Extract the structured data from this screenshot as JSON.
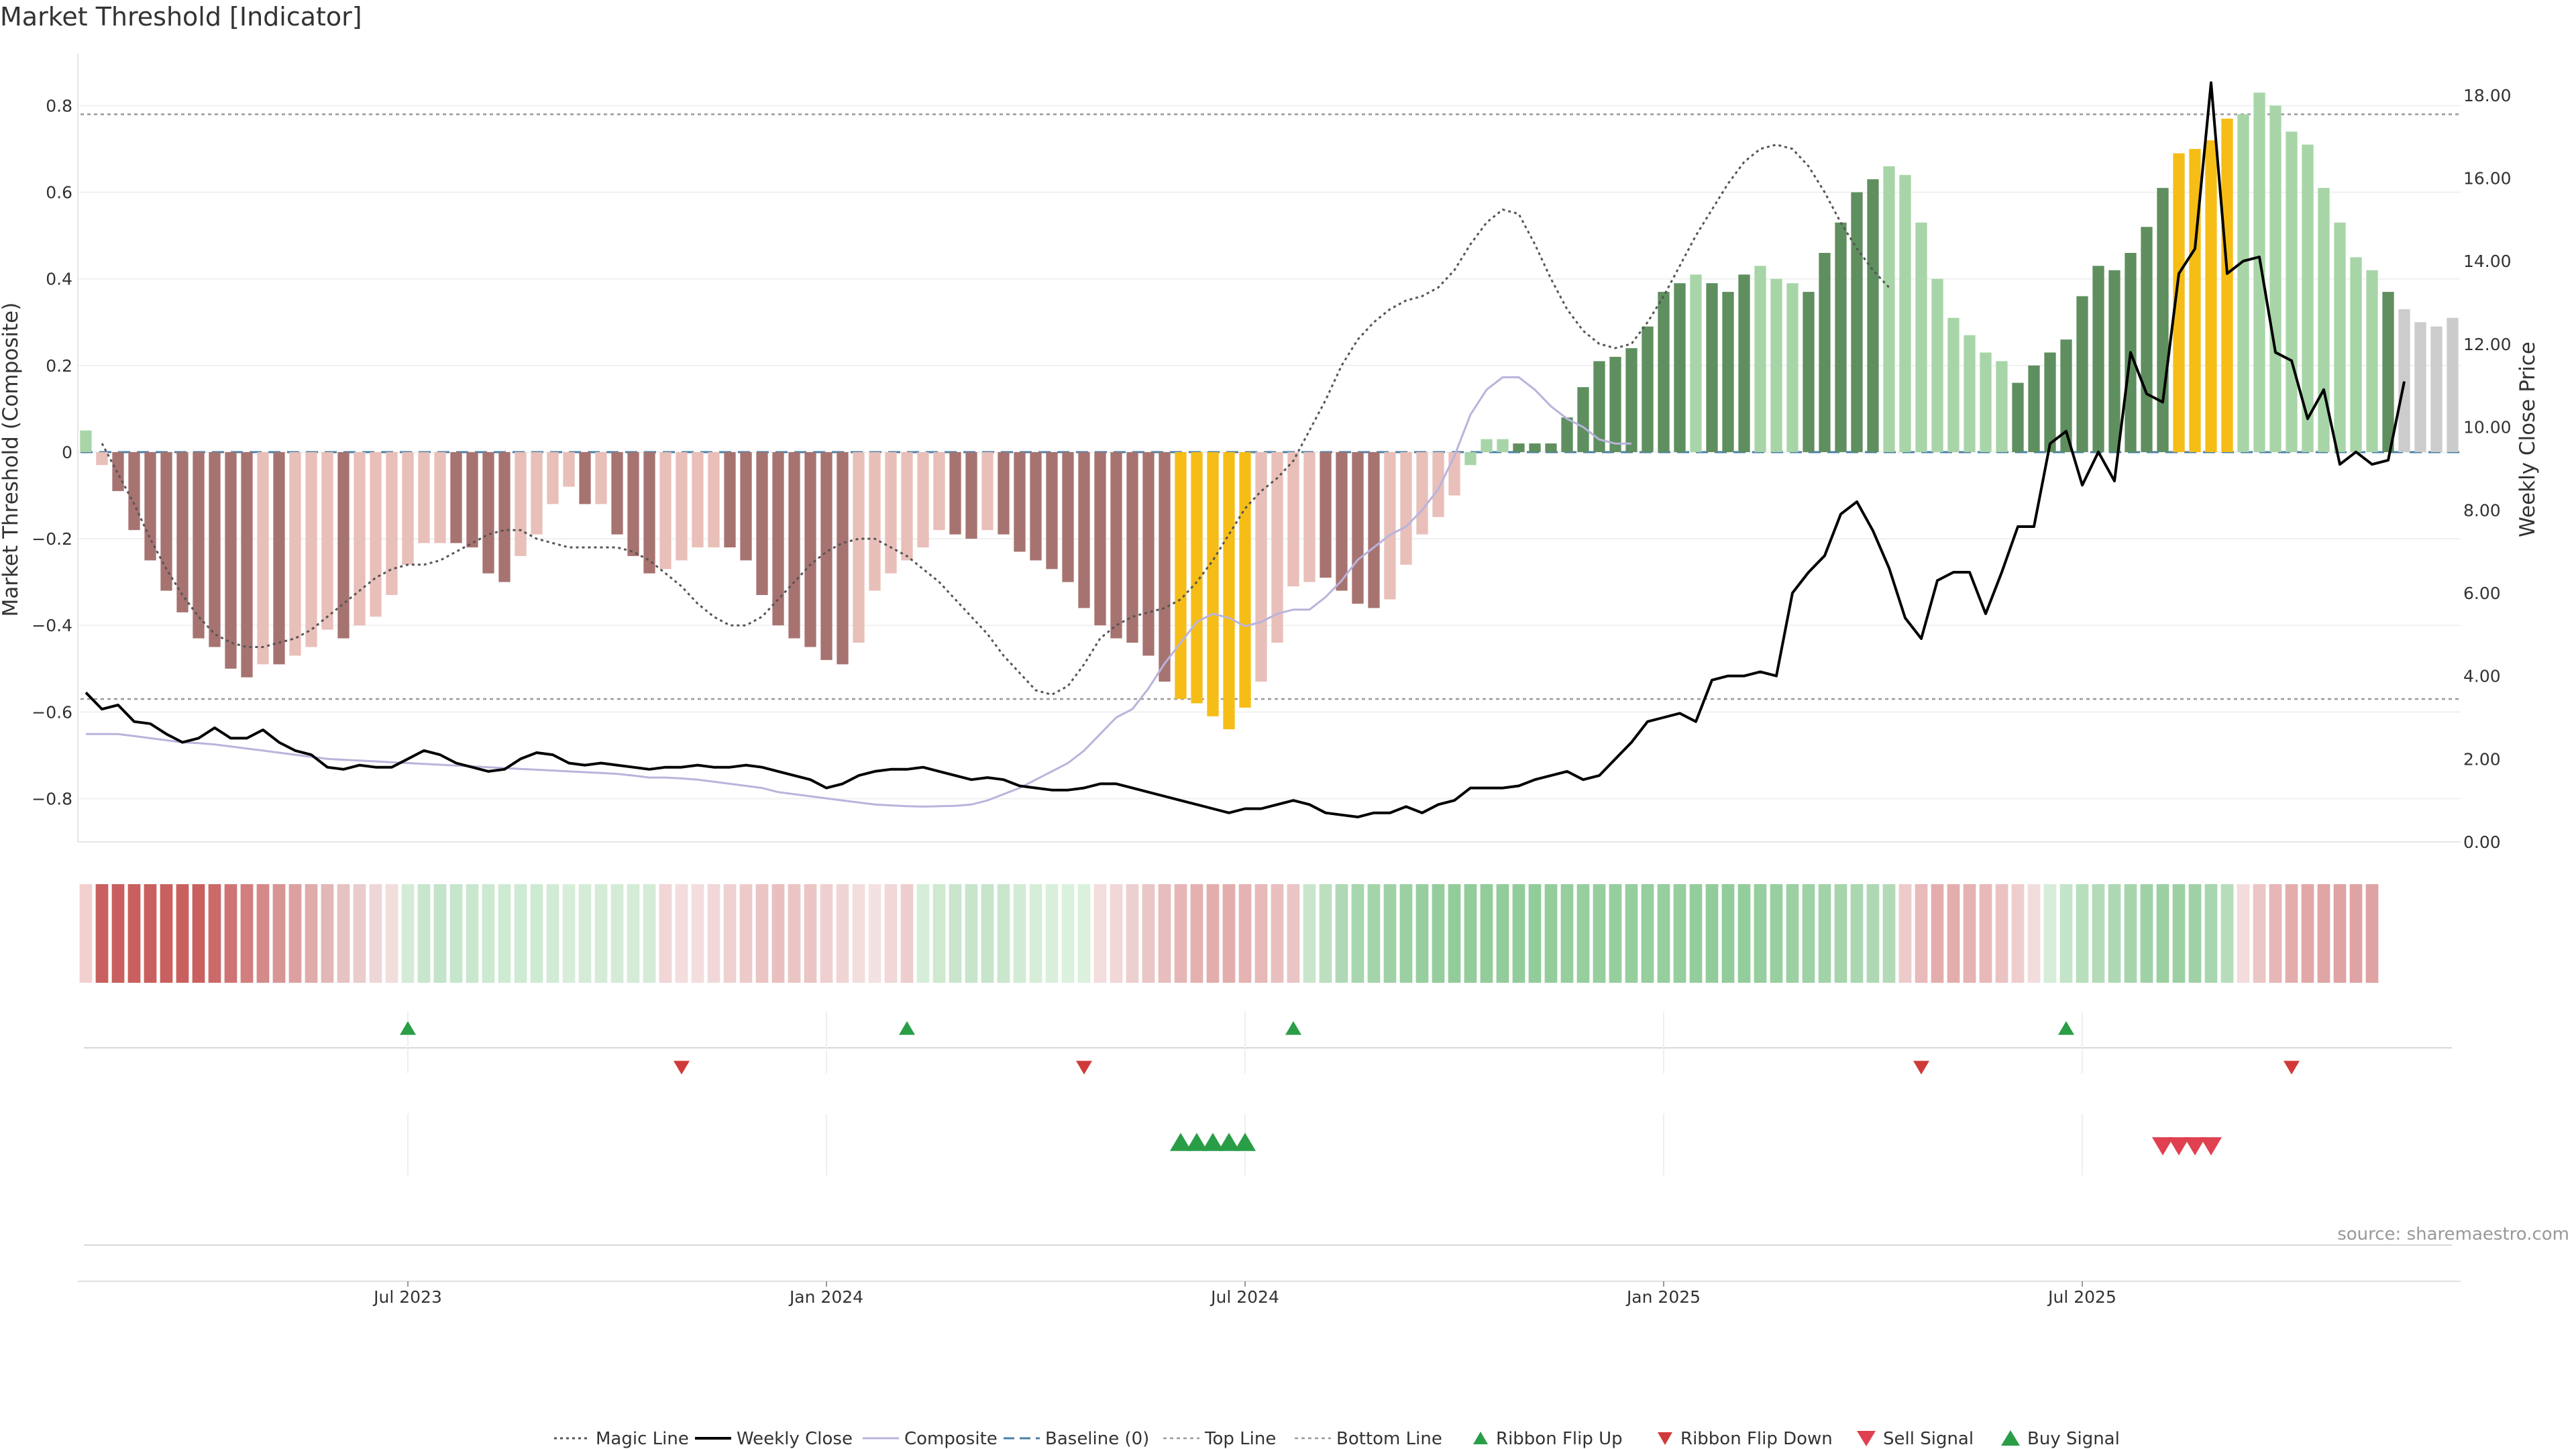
{
  "chart_data": {
    "type": "bar",
    "title": "Market Threshold [Indicator]",
    "ylabel_left": "Market Threshold (Composite)",
    "ylabel_right": "Weekly Close Price",
    "source": "source: sharemaestro.com",
    "ylim_left": [
      -0.9,
      0.92
    ],
    "ylim_right": [
      0,
      19
    ],
    "left_ticks": [
      {
        "value": 0.8,
        "label": "0.8"
      },
      {
        "value": 0.6,
        "label": "0.6"
      },
      {
        "value": 0.4,
        "label": "0.4"
      },
      {
        "value": 0.2,
        "label": "0.2"
      },
      {
        "value": 0,
        "label": "0"
      },
      {
        "value": -0.2,
        "label": "−0.2"
      },
      {
        "value": -0.4,
        "label": "−0.4"
      },
      {
        "value": -0.6,
        "label": "−0.6"
      },
      {
        "value": -0.8,
        "label": "−0.8"
      }
    ],
    "right_ticks": [
      {
        "value": 18,
        "label": "18.00"
      },
      {
        "value": 16,
        "label": "16.00"
      },
      {
        "value": 14,
        "label": "14.00"
      },
      {
        "value": 12,
        "label": "12.00"
      },
      {
        "value": 10,
        "label": "10.00"
      },
      {
        "value": 8,
        "label": "8.00"
      },
      {
        "value": 6,
        "label": "6.00"
      },
      {
        "value": 4,
        "label": "4.00"
      },
      {
        "value": 2,
        "label": "2.00"
      },
      {
        "value": 0,
        "label": "0.00"
      }
    ],
    "x_ticks": [
      {
        "week": 20,
        "label": "Jul 2023"
      },
      {
        "week": 46,
        "label": "Jan 2024"
      },
      {
        "week": 72,
        "label": "Jul 2024"
      },
      {
        "week": 98,
        "label": "Jan 2025"
      },
      {
        "week": 124,
        "label": "Jul 2025"
      }
    ],
    "top_line": 0.78,
    "bottom_line": -0.57,
    "composite": [
      0.05,
      -0.03,
      -0.09,
      -0.18,
      -0.25,
      -0.32,
      -0.37,
      -0.43,
      -0.45,
      -0.5,
      -0.52,
      -0.49,
      -0.49,
      -0.47,
      -0.45,
      -0.41,
      -0.43,
      -0.4,
      -0.38,
      -0.33,
      -0.26,
      -0.21,
      -0.21,
      -0.21,
      -0.22,
      -0.28,
      -0.3,
      -0.24,
      -0.19,
      -0.12,
      -0.08,
      -0.12,
      -0.12,
      -0.19,
      -0.24,
      -0.28,
      -0.27,
      -0.25,
      -0.22,
      -0.22,
      -0.22,
      -0.25,
      -0.33,
      -0.4,
      -0.43,
      -0.45,
      -0.48,
      -0.49,
      -0.44,
      -0.32,
      -0.28,
      -0.25,
      -0.22,
      -0.18,
      -0.19,
      -0.2,
      -0.18,
      -0.19,
      -0.23,
      -0.25,
      -0.27,
      -0.3,
      -0.36,
      -0.4,
      -0.43,
      -0.44,
      -0.47,
      -0.53,
      -0.57,
      -0.58,
      -0.61,
      -0.64,
      -0.59,
      -0.53,
      -0.44,
      -0.31,
      -0.3,
      -0.29,
      -0.32,
      -0.35,
      -0.36,
      -0.34,
      -0.26,
      -0.19,
      -0.15,
      -0.1,
      -0.03,
      0.03,
      0.03,
      0.02,
      0.02,
      0.02,
      0.08,
      0.15,
      0.21,
      0.22,
      0.24,
      0.29,
      0.37,
      0.39,
      0.41,
      0.39,
      0.37,
      0.41,
      0.43,
      0.4,
      0.39,
      0.37,
      0.46,
      0.53,
      0.6,
      0.63,
      0.66,
      0.64,
      0.53,
      0.4,
      0.31,
      0.27,
      0.23,
      0.21,
      0.16,
      0.2,
      0.23,
      0.26,
      0.36,
      0.43,
      0.42,
      0.46,
      0.52,
      0.61,
      0.69,
      0.7,
      0.72,
      0.77,
      0.78,
      0.83,
      0.8,
      0.74,
      0.71,
      0.61,
      0.53,
      0.45,
      0.42,
      0.37,
      0.33,
      0.3,
      0.29,
      0.31
    ],
    "bar_categories": [
      "pos_light",
      "neg_light",
      "neg_dark",
      "neg_dark",
      "neg_dark",
      "neg_dark",
      "neg_dark",
      "neg_dark",
      "neg_dark",
      "neg_dark",
      "neg_dark",
      "neg_light",
      "neg_dark",
      "neg_light",
      "neg_light",
      "neg_light",
      "neg_dark",
      "neg_light",
      "neg_light",
      "neg_light",
      "neg_light",
      "neg_light",
      "neg_light",
      "neg_dark",
      "neg_dark",
      "neg_dark",
      "neg_dark",
      "neg_light",
      "neg_light",
      "neg_light",
      "neg_light",
      "neg_dark",
      "neg_light",
      "neg_dark",
      "neg_dark",
      "neg_dark",
      "neg_light",
      "neg_light",
      "neg_light",
      "neg_light",
      "neg_dark",
      "neg_dark",
      "neg_dark",
      "neg_dark",
      "neg_dark",
      "neg_dark",
      "neg_dark",
      "neg_dark",
      "neg_light",
      "neg_light",
      "neg_light",
      "neg_light",
      "neg_light",
      "neg_light",
      "neg_dark",
      "neg_dark",
      "neg_light",
      "neg_dark",
      "neg_dark",
      "neg_dark",
      "neg_dark",
      "neg_dark",
      "neg_dark",
      "neg_dark",
      "neg_dark",
      "neg_dark",
      "neg_dark",
      "neg_dark",
      "gold",
      "gold",
      "gold",
      "gold",
      "gold",
      "neg_light",
      "neg_light",
      "neg_light",
      "neg_light",
      "neg_dark",
      "neg_dark",
      "neg_dark",
      "neg_dark",
      "neg_light",
      "neg_light",
      "neg_light",
      "neg_light",
      "neg_light",
      "pos_light",
      "pos_light",
      "pos_light",
      "pos_dark",
      "pos_dark",
      "pos_dark",
      "pos_dark",
      "pos_dark",
      "pos_dark",
      "pos_dark",
      "pos_dark",
      "pos_dark",
      "pos_dark",
      "pos_dark",
      "pos_light",
      "pos_dark",
      "pos_dark",
      "pos_dark",
      "pos_light",
      "pos_light",
      "pos_light",
      "pos_dark",
      "pos_dark",
      "pos_dark",
      "pos_dark",
      "pos_dark",
      "pos_light",
      "pos_light",
      "pos_light",
      "pos_light",
      "pos_light",
      "pos_light",
      "pos_light",
      "pos_light",
      "pos_dark",
      "pos_dark",
      "pos_dark",
      "pos_dark",
      "pos_dark",
      "pos_dark",
      "pos_dark",
      "pos_dark",
      "pos_dark",
      "pos_dark",
      "gold",
      "gold",
      "gold",
      "gold",
      "pos_light",
      "pos_light",
      "pos_light",
      "pos_light",
      "pos_light",
      "pos_light",
      "pos_light",
      "pos_light",
      "pos_light",
      "pos_dark"
    ],
    "weekly_close": [
      3.6,
      3.2,
      3.3,
      2.9,
      2.85,
      2.6,
      2.4,
      2.5,
      2.75,
      2.5,
      2.5,
      2.7,
      2.4,
      2.2,
      2.1,
      1.8,
      1.75,
      1.85,
      1.8,
      1.8,
      2.0,
      2.2,
      2.1,
      1.9,
      1.8,
      1.7,
      1.75,
      2.0,
      2.15,
      2.1,
      1.9,
      1.85,
      1.9,
      1.85,
      1.8,
      1.75,
      1.8,
      1.8,
      1.85,
      1.8,
      1.8,
      1.85,
      1.8,
      1.7,
      1.6,
      1.5,
      1.3,
      1.4,
      1.6,
      1.7,
      1.75,
      1.75,
      1.8,
      1.7,
      1.6,
      1.5,
      1.55,
      1.5,
      1.35,
      1.3,
      1.25,
      1.25,
      1.3,
      1.4,
      1.4,
      1.3,
      1.2,
      1.1,
      1.0,
      0.9,
      0.8,
      0.7,
      0.8,
      0.8,
      0.9,
      1.0,
      0.9,
      0.7,
      0.65,
      0.6,
      0.7,
      0.7,
      0.85,
      0.7,
      0.9,
      1.0,
      1.3,
      1.3,
      1.3,
      1.35,
      1.5,
      1.6,
      1.7,
      1.5,
      1.6,
      2.0,
      2.4,
      2.9,
      3.0,
      3.1,
      2.9,
      3.9,
      4.0,
      4.0,
      4.1,
      4.0,
      6.0,
      6.5,
      6.9,
      7.9,
      8.2,
      7.5,
      6.6,
      5.4,
      4.9,
      6.3,
      6.5,
      6.5,
      5.5,
      6.5,
      7.6,
      7.6,
      9.6,
      9.9,
      8.6,
      9.4,
      8.7,
      11.8,
      10.8,
      10.6,
      13.7,
      14.3,
      18.3,
      13.7,
      14.0,
      14.1,
      11.8,
      11.6,
      10.2,
      10.9,
      9.1,
      9.4,
      9.1,
      9.2,
      11.1
    ],
    "magic_line": [
      0.02,
      -0.05,
      -0.12,
      -0.2,
      -0.27,
      -0.33,
      -0.38,
      -0.42,
      -0.44,
      -0.45,
      -0.45,
      -0.44,
      -0.43,
      -0.41,
      -0.38,
      -0.35,
      -0.32,
      -0.29,
      -0.27,
      -0.26,
      -0.26,
      -0.25,
      -0.23,
      -0.21,
      -0.19,
      -0.18,
      -0.18,
      -0.2,
      -0.21,
      -0.22,
      -0.22,
      -0.22,
      -0.22,
      -0.23,
      -0.25,
      -0.28,
      -0.31,
      -0.35,
      -0.38,
      -0.4,
      -0.4,
      -0.38,
      -0.34,
      -0.3,
      -0.26,
      -0.23,
      -0.21,
      -0.2,
      -0.2,
      -0.22,
      -0.24,
      -0.27,
      -0.3,
      -0.34,
      -0.38,
      -0.42,
      -0.47,
      -0.51,
      -0.55,
      -0.56,
      -0.54,
      -0.49,
      -0.43,
      -0.4,
      -0.38,
      -0.37,
      -0.36,
      -0.34,
      -0.3,
      -0.25,
      -0.19,
      -0.13,
      -0.09,
      -0.06,
      -0.02,
      0.05,
      0.12,
      0.2,
      0.26,
      0.3,
      0.33,
      0.35,
      0.36,
      0.38,
      0.42,
      0.48,
      0.53,
      0.56,
      0.55,
      0.48,
      0.4,
      0.33,
      0.28,
      0.25,
      0.24,
      0.25,
      0.3,
      0.36,
      0.43,
      0.5,
      0.56,
      0.62,
      0.67,
      0.7,
      0.71,
      0.7,
      0.66,
      0.6,
      0.53,
      0.47,
      0.42,
      0.38
    ],
    "magic_line_start_week": 1,
    "ema": [
      2.6,
      2.6,
      2.6,
      2.55,
      2.5,
      2.45,
      2.4,
      2.38,
      2.35,
      2.3,
      2.25,
      2.2,
      2.15,
      2.1,
      2.05,
      2.0,
      1.98,
      1.96,
      1.94,
      1.92,
      1.9,
      1.88,
      1.86,
      1.84,
      1.82,
      1.8,
      1.78,
      1.76,
      1.74,
      1.72,
      1.7,
      1.68,
      1.66,
      1.64,
      1.6,
      1.55,
      1.55,
      1.53,
      1.5,
      1.45,
      1.4,
      1.35,
      1.3,
      1.2,
      1.15,
      1.1,
      1.05,
      1.0,
      0.95,
      0.9,
      0.88,
      0.86,
      0.85,
      0.86,
      0.87,
      0.9,
      1.0,
      1.15,
      1.3,
      1.5,
      1.7,
      1.9,
      2.2,
      2.6,
      3.0,
      3.2,
      3.7,
      4.3,
      4.8,
      5.3,
      5.5,
      5.4,
      5.2,
      5.3,
      5.5,
      5.6,
      5.6,
      5.9,
      6.3,
      6.8,
      7.1,
      7.4,
      7.6,
      8.0,
      8.5,
      9.3,
      10.3,
      10.9,
      11.2,
      11.2,
      10.9,
      10.5,
      10.2,
      10.0,
      9.7,
      9.6,
      9.6
    ],
    "ema_start_week": 0,
    "ribbon_colors": [
      "#f3d0d0",
      "#c95f5f",
      "#c95f5f",
      "#c95f5f",
      "#c95f5f",
      "#c95f5f",
      "#c95f5f",
      "#c95f5f",
      "#cc6a6a",
      "#cf7474",
      "#d27e7e",
      "#d58989",
      "#d99494",
      "#dca0a0",
      "#e0abab",
      "#e3b7b7",
      "#e7c2c2",
      "#eacccc",
      "#efd6d6",
      "#f2dddd",
      "#d4ecd7",
      "#c7e6cc",
      "#c2e4c8",
      "#c6e6cb",
      "#c9e7ce",
      "#cde9d1",
      "#cfead3",
      "#cfead3",
      "#cfead3",
      "#d2ebd6",
      "#d6eed9",
      "#d4ecd7",
      "#d4ecd7",
      "#d4ecd7",
      "#d4ecd7",
      "#d4ecd7",
      "#f0d6d6",
      "#f3dddd",
      "#f3dddd",
      "#f1d8d8",
      "#efd1d1",
      "#edcaca",
      "#ebc4c4",
      "#e9bfbf",
      "#ebc4c4",
      "#ebc4c4",
      "#efcfcf",
      "#f0d4d4",
      "#f3dddd",
      "#f4e1e1",
      "#f1d7d7",
      "#edcdcd",
      "#d6eed9",
      "#cdeacf",
      "#c9e6cd",
      "#c7e5cb",
      "#c6e5cb",
      "#cae7ce",
      "#d2ebd5",
      "#d6edd8",
      "#d9efdb",
      "#dcf0de",
      "#dcf0de",
      "#f3dddd",
      "#f1d7d7",
      "#eecfcf",
      "#ebc6c6",
      "#e8bdbd",
      "#e6b6b6",
      "#e4b0b0",
      "#e3adad",
      "#e3adad",
      "#e5b3b3",
      "#e7b9b9",
      "#e9bfbf",
      "#ebc5c5",
      "#c9e6cd",
      "#bcdfc0",
      "#afd9b5",
      "#a8d6ae",
      "#a4d4aa",
      "#9fd1a6",
      "#9ad0a2",
      "#97ce9f",
      "#95cd9d",
      "#93cc9b",
      "#92cc9a",
      "#92cc9a",
      "#92cc9a",
      "#92cc9a",
      "#92cc9a",
      "#94cd9c",
      "#96ce9e",
      "#96ce9e",
      "#96ce9e",
      "#96ce9e",
      "#96ce9e",
      "#96ce9e",
      "#96ce9e",
      "#96ce9e",
      "#94cd9c",
      "#92cc9a",
      "#92cc9a",
      "#94cd9c",
      "#96ce9e",
      "#98cf9f",
      "#9bd0a2",
      "#9ed1a5",
      "#a2d3a8",
      "#a6d5ac",
      "#aad7b0",
      "#aed8b3",
      "#b2dab6",
      "#edcbcb",
      "#e8baba",
      "#e4adad",
      "#e4adad",
      "#e6b2b2",
      "#e8b9b9",
      "#ebc2c2",
      "#efcdcd",
      "#f3dcdc",
      "#d6eed9",
      "#c3e4c8",
      "#b8dfbd",
      "#b3dbb8",
      "#aed8b3",
      "#a6d5ac",
      "#9fd1a6",
      "#9bd0a2",
      "#9bd0a2",
      "#9fd1a6",
      "#a8d6ae",
      "#b6ddbb",
      "#f3dcdc",
      "#ecc5c5",
      "#e7b6b6",
      "#e4adad",
      "#e2a8a8",
      "#e0a5a5",
      "#dfa3a3",
      "#dfa3a3",
      "#dfa3a3"
    ],
    "ribbon_flip_up_weeks": [
      20,
      51,
      75,
      123
    ],
    "ribbon_flip_down_weeks": [
      37,
      62,
      114,
      137
    ],
    "buy_signal_weeks": [
      68,
      69,
      70,
      71,
      72
    ],
    "sell_signal_weeks": [
      129,
      130,
      131,
      132
    ],
    "colors": {
      "neg_dark": "#a77370",
      "neg_light": "#e9bfb9",
      "pos_dark": "#5f8f5f",
      "pos_light": "#a8d5a8",
      "gold": "#f6bd16",
      "weekly_close": "#000000",
      "composite": "#b8b4dc",
      "magic_line": "#555555",
      "baseline": "#4a7fa7",
      "ref_line": "#999999",
      "flip_up": "#2a9d47",
      "flip_down": "#d03a3a",
      "sell": "#e04050",
      "buy": "#2a9d47"
    },
    "legend": [
      {
        "label": "Magic Line",
        "type": "dotted-line"
      },
      {
        "label": "Weekly Close",
        "type": "solid-line"
      },
      {
        "label": "Composite",
        "type": "composite-line"
      },
      {
        "label": "Baseline (0)",
        "type": "dashed-line"
      },
      {
        "label": "Top Line",
        "type": "thin-dotted-line"
      },
      {
        "label": "Bottom Line",
        "type": "thin-dotted-line"
      },
      {
        "label": "Ribbon Flip Up",
        "type": "triangle-up-small"
      },
      {
        "label": "Ribbon Flip Down",
        "type": "triangle-down-small"
      },
      {
        "label": "Sell Signal",
        "type": "triangle-down-big"
      },
      {
        "label": "Buy Signal",
        "type": "triangle-up-big"
      }
    ]
  }
}
